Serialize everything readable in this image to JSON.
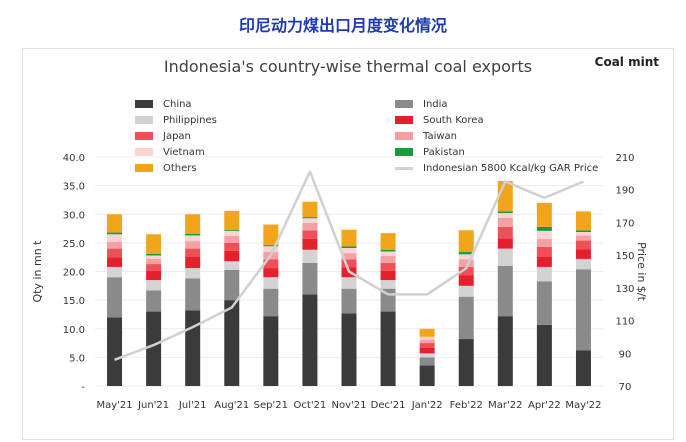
{
  "page_title": "印尼动力煤出口月度变化情况",
  "logo_text": "Coal mint",
  "chart_data": {
    "type": "bar",
    "title": "Indonesia's country-wise thermal coal exports",
    "ylabel": "Qty in mn t",
    "y2label": "Price in $/t",
    "ylim": [
      0,
      40
    ],
    "y2lim": [
      70,
      210
    ],
    "yticks": [
      "-",
      "5.0",
      "10.0",
      "15.0",
      "20.0",
      "25.0",
      "30.0",
      "35.0",
      "40.0"
    ],
    "y2ticks": [
      "70",
      "90",
      "110",
      "130",
      "150",
      "170",
      "190",
      "210"
    ],
    "categories": [
      "May'21",
      "Jun'21",
      "Jul'21",
      "Aug'21",
      "Sep'21",
      "Oct'21",
      "Nov'21",
      "Dec'21",
      "Jan'22",
      "Feb'22",
      "Mar'22",
      "Apr'22",
      "May'22"
    ],
    "series": [
      {
        "name": "China",
        "color": "#3b3b3b",
        "values": [
          12.0,
          13.0,
          13.2,
          15.0,
          12.2,
          16.0,
          12.7,
          13.0,
          3.6,
          8.2,
          12.2,
          10.7,
          6.2
        ]
      },
      {
        "name": "India",
        "color": "#8a8a8a",
        "values": [
          7.0,
          3.7,
          5.6,
          5.3,
          4.8,
          5.5,
          4.3,
          4.0,
          1.4,
          7.4,
          8.8,
          7.6,
          14.2
        ]
      },
      {
        "name": "Philippines",
        "color": "#d3d3d3",
        "values": [
          1.8,
          1.8,
          1.8,
          1.5,
          2.0,
          2.3,
          2.0,
          1.5,
          0.7,
          1.9,
          3.0,
          2.5,
          1.8
        ]
      },
      {
        "name": "South Korea",
        "color": "#e3202c",
        "values": [
          1.7,
          1.6,
          2.0,
          1.8,
          1.6,
          1.9,
          1.7,
          1.6,
          1.0,
          1.8,
          1.8,
          1.8,
          1.7
        ]
      },
      {
        "name": "Japan",
        "color": "#ef4f56",
        "values": [
          1.5,
          1.2,
          1.4,
          1.4,
          1.5,
          1.5,
          1.4,
          1.4,
          0.8,
          1.5,
          2.0,
          1.7,
          1.5
        ]
      },
      {
        "name": "Taiwan",
        "color": "#f4a0a5",
        "values": [
          1.2,
          0.9,
          1.3,
          1.2,
          1.3,
          1.3,
          1.1,
          1.2,
          0.6,
          1.3,
          1.6,
          1.4,
          0.9
        ]
      },
      {
        "name": "Vietnam",
        "color": "#fbd2d5",
        "values": [
          1.3,
          0.6,
          1.0,
          0.9,
          1.0,
          0.8,
          0.9,
          0.8,
          0.5,
          0.9,
          0.8,
          1.4,
          0.6
        ]
      },
      {
        "name": "Pakistan",
        "color": "#169b3e",
        "values": [
          0.3,
          0.3,
          0.3,
          0.2,
          0.2,
          0.2,
          0.3,
          0.3,
          0.0,
          0.4,
          0.3,
          0.7,
          0.3
        ]
      },
      {
        "name": "Others",
        "color": "#f0a51a",
        "values": [
          3.2,
          3.4,
          3.4,
          3.3,
          3.6,
          2.7,
          2.9,
          2.9,
          1.4,
          3.8,
          5.3,
          4.2,
          3.3
        ]
      }
    ],
    "price_series": {
      "name": "Indonesian 5800 Kcal/kg GAR Price",
      "color": "#d0d0d0",
      "values": [
        86,
        95,
        106,
        118,
        150,
        201,
        140,
        126,
        126,
        142,
        195,
        185,
        195
      ]
    },
    "legend": {
      "left": [
        "China",
        "Philippines",
        "Japan",
        "Vietnam",
        "Others"
      ],
      "right": [
        "India",
        "South Korea",
        "Taiwan",
        "Pakistan",
        "Indonesian 5800 Kcal/kg GAR Price"
      ]
    }
  }
}
